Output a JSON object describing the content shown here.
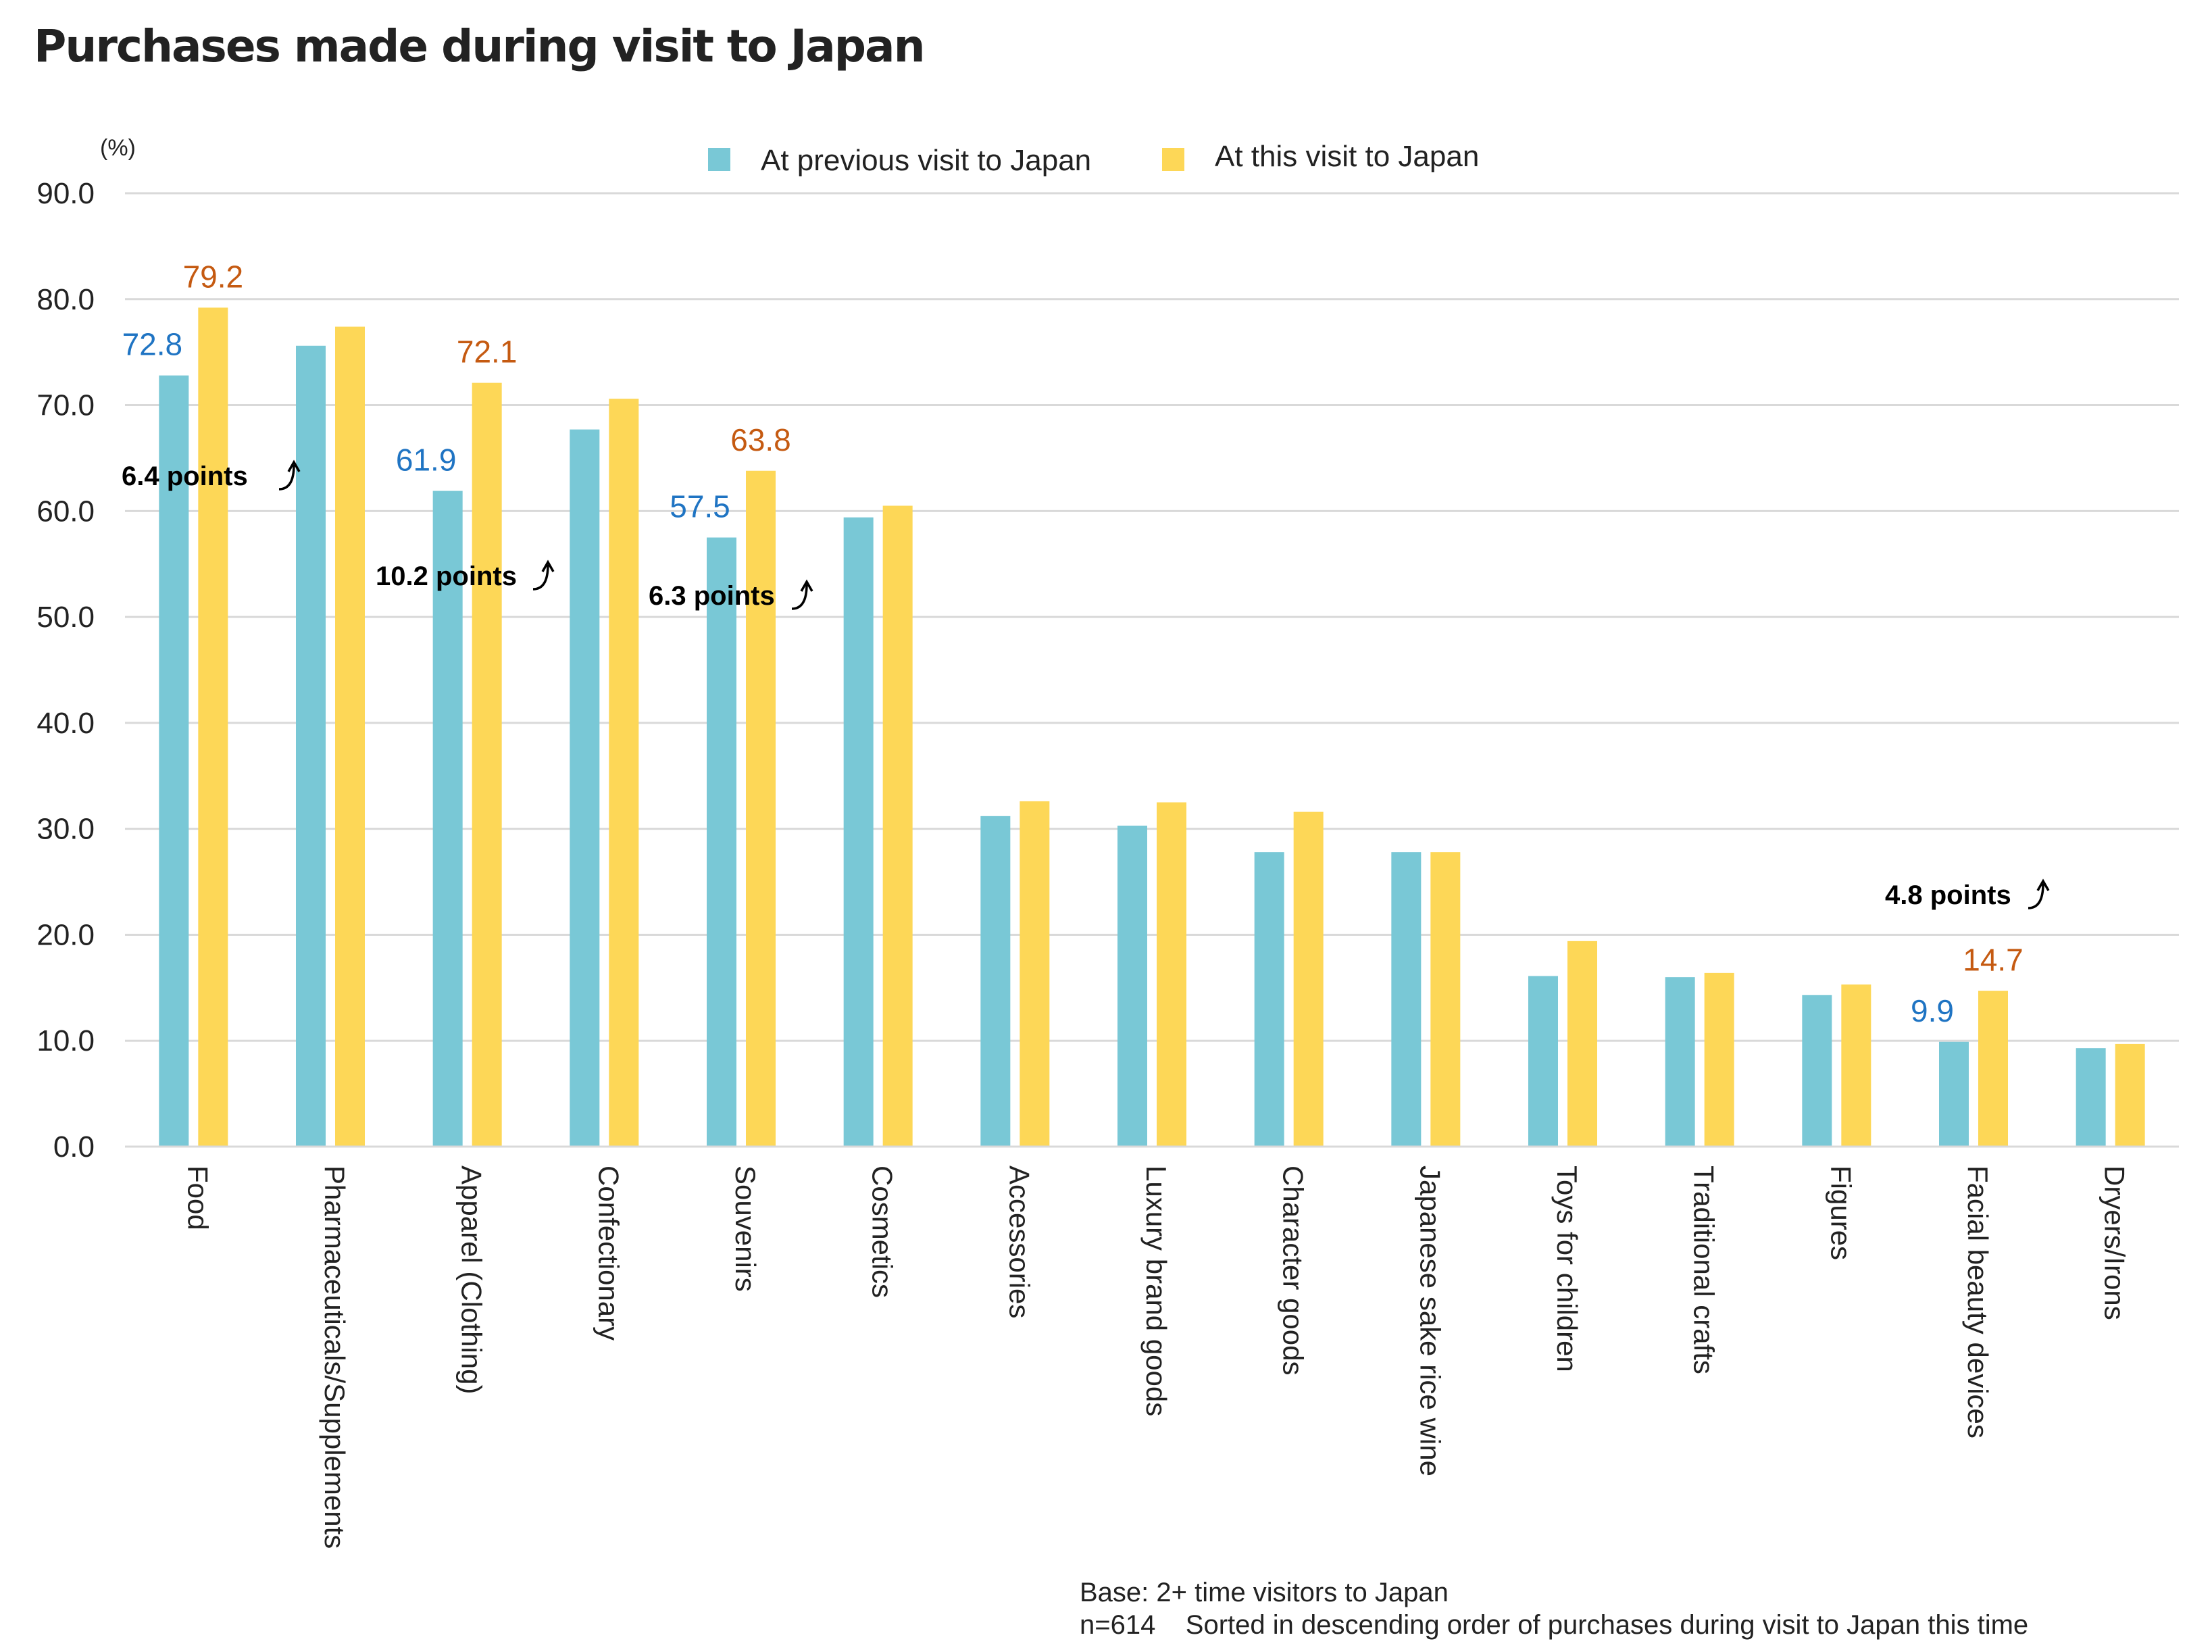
{
  "chart_data": {
    "type": "bar",
    "title": "Purchases made during visit to Japan",
    "unit_label": "(%)",
    "xlabel": "",
    "ylabel": "(%)",
    "ylim": [
      0,
      90
    ],
    "yticks": [
      "0.0",
      "10.0",
      "20.0",
      "30.0",
      "40.0",
      "50.0",
      "60.0",
      "70.0",
      "80.0",
      "90.0"
    ],
    "grid": true,
    "legend_position": "top-center",
    "categories": [
      "Food",
      "Pharmaceuticals/Supplements",
      "Apparel (Clothing)",
      "Confectionary",
      "Souvenirs",
      "Cosmetics",
      "Accessories",
      "Luxury brand goods",
      "Character goods",
      "Japanese sake rice wine",
      "Toys for children",
      "Traditional crafts",
      "Figures",
      "Facial beauty devices",
      "Dryers/Irons"
    ],
    "series": [
      {
        "name": "At previous visit to Japan",
        "color": "#79C8D6",
        "values": [
          72.8,
          75.6,
          61.9,
          67.7,
          57.5,
          59.4,
          31.2,
          30.3,
          27.8,
          27.8,
          16.1,
          16.0,
          14.3,
          9.9,
          9.3
        ]
      },
      {
        "name": "At this visit to Japan",
        "color": "#FDD757",
        "values": [
          79.2,
          77.4,
          72.1,
          70.6,
          63.8,
          60.5,
          32.6,
          32.5,
          31.6,
          27.8,
          19.4,
          16.4,
          15.3,
          14.7,
          9.7
        ]
      }
    ],
    "data_labels": [
      {
        "category_index": 0,
        "series_index": 0,
        "text": "72.8",
        "color": "#1F74C3"
      },
      {
        "category_index": 0,
        "series_index": 1,
        "text": "79.2",
        "color": "#C55A11"
      },
      {
        "category_index": 2,
        "series_index": 0,
        "text": "61.9",
        "color": "#1F74C3"
      },
      {
        "category_index": 2,
        "series_index": 1,
        "text": "72.1",
        "color": "#C55A11"
      },
      {
        "category_index": 4,
        "series_index": 0,
        "text": "57.5",
        "color": "#1F74C3"
      },
      {
        "category_index": 4,
        "series_index": 1,
        "text": "63.8",
        "color": "#C55A11"
      },
      {
        "category_index": 13,
        "series_index": 0,
        "text": "9.9",
        "color": "#1F74C3"
      },
      {
        "category_index": 13,
        "series_index": 1,
        "text": "14.7",
        "color": "#C55A11"
      }
    ],
    "annotations": [
      {
        "category_index": 0,
        "text": "6.4  points",
        "arrow": "up-curved-arrow"
      },
      {
        "category_index": 2,
        "text": "10.2 points",
        "arrow": "up-curved-arrow"
      },
      {
        "category_index": 4,
        "text": "6.3 points",
        "arrow": "up-curved-arrow"
      },
      {
        "category_index": 13,
        "text": "4.8 points",
        "arrow": "up-curved-arrow"
      }
    ],
    "footnotes": [
      "Base: 2+ time visitors to Japan",
      "n=614    Sorted in descending order of purchases during visit to Japan this time"
    ]
  }
}
